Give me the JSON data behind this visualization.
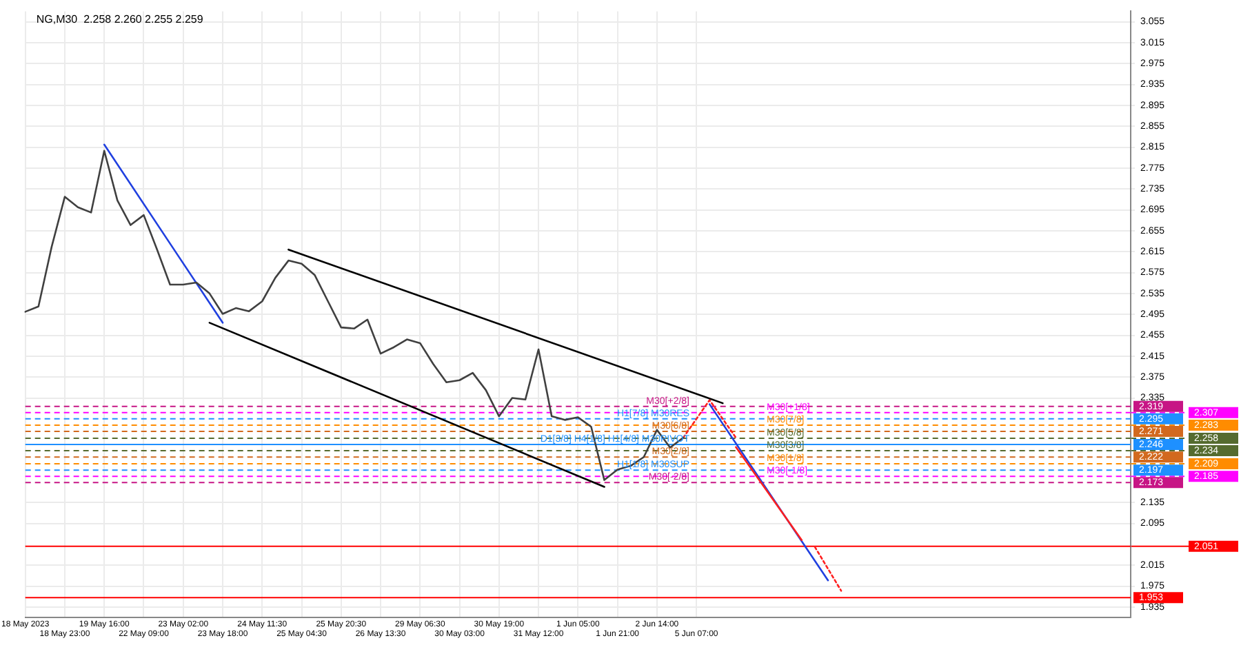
{
  "chart_data": {
    "type": "line",
    "title": "NG,M30  2.258 2.260 2.255 2.259",
    "marker": "none",
    "grid": true,
    "ylim": [
      1.915,
      3.075
    ],
    "categories": [
      "18 May 2023",
      null,
      null,
      "18 May 23:00",
      null,
      null,
      "19 May 16:00",
      null,
      null,
      "22 May 09:00",
      null,
      null,
      "23 May 02:00",
      null,
      null,
      "23 May 18:00",
      null,
      null,
      "24 May 11:30",
      null,
      null,
      "25 May 04:30",
      null,
      null,
      "25 May 20:30",
      null,
      null,
      "26 May 13:30",
      null,
      null,
      "29 May 06:30",
      null,
      null,
      "30 May 03:00",
      null,
      null,
      "30 May 19:00",
      null,
      null,
      "31 May 12:00",
      null,
      null,
      "1 Jun 05:00",
      null,
      null,
      "1 Jun 21:00",
      null,
      null,
      "2 Jun 14:00",
      null,
      null,
      "5 Jun 07:00",
      null,
      null,
      null,
      null,
      null,
      null,
      null,
      null,
      null,
      null,
      null,
      null,
      null,
      null,
      null,
      null,
      null,
      null,
      null,
      null,
      null,
      null,
      null,
      null,
      null,
      null,
      null,
      null,
      null,
      null,
      null,
      null,
      null
    ],
    "yticks": [
      1.935,
      1.975,
      2.015,
      2.095,
      2.135,
      2.335,
      2.375,
      2.415,
      2.455,
      2.495,
      2.535,
      2.575,
      2.615,
      2.655,
      2.695,
      2.735,
      2.775,
      2.815,
      2.855,
      2.895,
      2.935,
      2.975,
      3.015,
      3.055
    ],
    "series": [
      {
        "type": "line",
        "color": "#404040",
        "line_style": "solid",
        "values": [
          2.5,
          2.51,
          2.624,
          2.72,
          2.7,
          2.69,
          2.808,
          2.713,
          2.666,
          2.685,
          2.62,
          2.552,
          2.552,
          2.556,
          2.535,
          2.496,
          2.507,
          2.501,
          2.52,
          2.565,
          2.598,
          2.592,
          2.57,
          2.52,
          2.47,
          2.468,
          2.485,
          2.42,
          2.432,
          2.447,
          2.44,
          2.4,
          2.365,
          2.369,
          2.383,
          2.35,
          2.3,
          2.335,
          2.332,
          2.428,
          2.3,
          2.293,
          2.298,
          2.28,
          2.178,
          2.198,
          2.205,
          2.222,
          2.274,
          2.24,
          2.259,
          null,
          null,
          null,
          null,
          null,
          null,
          null,
          null,
          null,
          null,
          null,
          null,
          null,
          null,
          null,
          null,
          null,
          null,
          null,
          null,
          null,
          null,
          null,
          null,
          null,
          null,
          null,
          null,
          null,
          null,
          null,
          null,
          null,
          null
        ]
      },
      {
        "type": "line",
        "color": "#2040e0",
        "line_style": "solid",
        "values": [
          null,
          null,
          null,
          null,
          null,
          null,
          2.82,
          null,
          null,
          null,
          null,
          null,
          null,
          null,
          null,
          2.479,
          null,
          null,
          null,
          null,
          null,
          null,
          null,
          null,
          null,
          null,
          null,
          null,
          null,
          null,
          null,
          null,
          null,
          null,
          null,
          null,
          null,
          null,
          null,
          null,
          null,
          null,
          null,
          null,
          null,
          null,
          null,
          null,
          null,
          null,
          null,
          null,
          null,
          null,
          null,
          null,
          null,
          null,
          null,
          null,
          null,
          null,
          null,
          null,
          null,
          null,
          null,
          null,
          null,
          null,
          null,
          null,
          null,
          null,
          null,
          null,
          null,
          null,
          null,
          null,
          null,
          null,
          null,
          null,
          null
        ]
      },
      {
        "type": "line",
        "color": "#000000",
        "line_style": "solid",
        "values": [
          null,
          null,
          null,
          null,
          null,
          null,
          null,
          null,
          null,
          null,
          null,
          null,
          null,
          null,
          null,
          null,
          null,
          null,
          null,
          null,
          2.619,
          null,
          null,
          null,
          null,
          null,
          null,
          null,
          null,
          null,
          null,
          null,
          null,
          null,
          null,
          null,
          null,
          null,
          null,
          null,
          null,
          null,
          null,
          null,
          null,
          null,
          null,
          null,
          null,
          null,
          null,
          null,
          null,
          2.325,
          null,
          null,
          null,
          null,
          null,
          null,
          null,
          null,
          null,
          null,
          null,
          null,
          null,
          null,
          null,
          null,
          null,
          null,
          null,
          null,
          null,
          null,
          null,
          null,
          null,
          null,
          null,
          null,
          null,
          null,
          null
        ]
      },
      {
        "type": "line",
        "color": "#000000",
        "line_style": "solid",
        "values": [
          null,
          null,
          null,
          null,
          null,
          null,
          null,
          null,
          null,
          null,
          null,
          null,
          null,
          null,
          2.479,
          null,
          null,
          null,
          null,
          null,
          null,
          null,
          null,
          null,
          null,
          null,
          null,
          null,
          null,
          null,
          null,
          null,
          null,
          null,
          null,
          null,
          null,
          null,
          null,
          null,
          null,
          null,
          null,
          null,
          2.165,
          null,
          null,
          null,
          null,
          null,
          null,
          null,
          null,
          null,
          null,
          null,
          null,
          null,
          null,
          null,
          null,
          null,
          null,
          null,
          null,
          null,
          null,
          null,
          null,
          null,
          null,
          null,
          null,
          null,
          null,
          null,
          null,
          null,
          null,
          null,
          null,
          null,
          null,
          null,
          null
        ]
      },
      {
        "type": "line",
        "color": "#ff2020",
        "line_style": "dotted",
        "values": [
          null,
          null,
          null,
          null,
          null,
          null,
          null,
          null,
          null,
          null,
          null,
          null,
          null,
          null,
          null,
          null,
          null,
          null,
          null,
          null,
          null,
          null,
          null,
          null,
          null,
          null,
          null,
          null,
          null,
          null,
          null,
          null,
          null,
          null,
          null,
          null,
          null,
          null,
          null,
          null,
          null,
          null,
          null,
          null,
          null,
          null,
          null,
          null,
          null,
          null,
          2.259,
          null,
          2.331,
          null,
          2.259,
          null,
          null,
          null,
          null,
          null,
          null,
          null,
          null,
          null,
          null,
          null,
          null,
          null,
          null,
          null,
          null,
          null,
          null,
          null,
          null,
          null,
          null,
          null,
          null,
          null,
          null,
          null,
          null,
          null,
          null
        ]
      },
      {
        "type": "line",
        "color": "#ff2020",
        "line_style": "solid",
        "values": [
          null,
          null,
          null,
          null,
          null,
          null,
          null,
          null,
          null,
          null,
          null,
          null,
          null,
          null,
          null,
          null,
          null,
          null,
          null,
          null,
          null,
          null,
          null,
          null,
          null,
          null,
          null,
          null,
          null,
          null,
          null,
          null,
          null,
          null,
          null,
          null,
          null,
          null,
          null,
          null,
          null,
          null,
          null,
          null,
          null,
          null,
          null,
          null,
          null,
          null,
          null,
          null,
          null,
          null,
          2.241,
          null,
          null,
          null,
          null,
          2.063,
          null,
          null,
          null,
          null,
          null,
          null,
          null,
          null,
          null,
          null,
          null,
          null,
          null,
          null,
          null,
          null,
          null,
          null,
          null,
          null,
          null,
          null,
          null,
          null,
          null
        ]
      },
      {
        "type": "line",
        "color": "#ff2020",
        "line_style": "dotted",
        "values": [
          null,
          null,
          null,
          null,
          null,
          null,
          null,
          null,
          null,
          null,
          null,
          null,
          null,
          null,
          null,
          null,
          null,
          null,
          null,
          null,
          null,
          null,
          null,
          null,
          null,
          null,
          null,
          null,
          null,
          null,
          null,
          null,
          null,
          null,
          null,
          null,
          null,
          null,
          null,
          null,
          null,
          null,
          null,
          null,
          null,
          null,
          null,
          null,
          null,
          null,
          null,
          null,
          null,
          null,
          null,
          null,
          null,
          null,
          null,
          null,
          2.05,
          null,
          1.966,
          null,
          null,
          null,
          null,
          null,
          null,
          null,
          null,
          null,
          null,
          null,
          null,
          null,
          null,
          null,
          null,
          null,
          null,
          null,
          null,
          null,
          null
        ]
      },
      {
        "type": "line",
        "color": "#2040e0",
        "line_style": "solid",
        "values": [
          null,
          null,
          null,
          null,
          null,
          null,
          null,
          null,
          null,
          null,
          null,
          null,
          null,
          null,
          null,
          null,
          null,
          null,
          null,
          null,
          null,
          null,
          null,
          null,
          null,
          null,
          null,
          null,
          null,
          null,
          null,
          null,
          null,
          null,
          null,
          null,
          null,
          null,
          null,
          null,
          null,
          null,
          null,
          null,
          null,
          null,
          null,
          null,
          null,
          null,
          null,
          null,
          2.323,
          null,
          null,
          null,
          null,
          null,
          null,
          null,
          null,
          1.986,
          null,
          null,
          null,
          null,
          null,
          null,
          null,
          null,
          null,
          null,
          null,
          null,
          null,
          null,
          null,
          null,
          null,
          null,
          null,
          null,
          null,
          null,
          null
        ]
      }
    ],
    "ref_lines": [
      {
        "axis": "y",
        "value": 2.319,
        "label": "2.319",
        "color": "#c71585",
        "line_style": "dashed"
      },
      {
        "axis": "y",
        "value": 2.307,
        "label": "2.307",
        "color": "#ff00ff",
        "line_style": "dashed"
      },
      {
        "axis": "y",
        "value": 2.295,
        "label": "2.295",
        "color": "#1e90ff",
        "line_style": "dashed"
      },
      {
        "axis": "y",
        "value": 2.283,
        "label": "2.283",
        "color": "#ff8c00",
        "line_style": "dashed"
      },
      {
        "axis": "y",
        "value": 2.271,
        "label": "2.271",
        "color": "#d2691e",
        "line_style": "dashed"
      },
      {
        "axis": "y",
        "value": 2.258,
        "label": "2.258",
        "color": "#556b2f",
        "line_style": "dashed"
      },
      {
        "axis": "y",
        "value": 2.246,
        "label": "2.246",
        "color": "#1e90ff",
        "line_style": "solid"
      },
      {
        "axis": "y",
        "value": 2.234,
        "label": "2.234",
        "color": "#556b2f",
        "line_style": "dashed"
      },
      {
        "axis": "y",
        "value": 2.222,
        "label": "2.222",
        "color": "#d2691e",
        "line_style": "dashed"
      },
      {
        "axis": "y",
        "value": 2.209,
        "label": "2.209",
        "color": "#ff8c00",
        "line_style": "dashed"
      },
      {
        "axis": "y",
        "value": 2.197,
        "label": "2.197",
        "color": "#1e90ff",
        "line_style": "dashed"
      },
      {
        "axis": "y",
        "value": 2.185,
        "label": "2.185",
        "color": "#ff00ff",
        "line_style": "dashed"
      },
      {
        "axis": "y",
        "value": 2.173,
        "label": "2.173",
        "color": "#c71585",
        "line_style": "dashed"
      },
      {
        "axis": "y",
        "value": 2.051,
        "label": "2.051",
        "color": "#ff0000",
        "line_style": "solid"
      },
      {
        "axis": "y",
        "value": 1.953,
        "label": "1.953",
        "color": "#ff0000",
        "line_style": "solid"
      }
    ],
    "annotations": [
      {
        "text": "M30[+2/8]",
        "y": 2.319
      },
      {
        "text": "M30[+1/8]",
        "y": 2.307
      },
      {
        "text": "H1[7/8] M30RES",
        "y": 2.295
      },
      {
        "text": "M30[7/8]",
        "y": 2.283
      },
      {
        "text": "M30[6/8]",
        "y": 2.271
      },
      {
        "text": "M30[5/8]",
        "y": 2.258
      },
      {
        "text": "D1[3/8] H4[1/8] H1[4/8] M30PIVOT",
        "y": 2.246
      },
      {
        "text": "M30[3/8]",
        "y": 2.234
      },
      {
        "text": "M30[2/8]",
        "y": 2.222
      },
      {
        "text": "M30[1/8]",
        "y": 2.209
      },
      {
        "text": "H1[1/8] M30SUP",
        "y": 2.197
      },
      {
        "text": "M30[-1/8]",
        "y": 2.185
      },
      {
        "text": "M30[-2/8]",
        "y": 2.173
      }
    ]
  }
}
